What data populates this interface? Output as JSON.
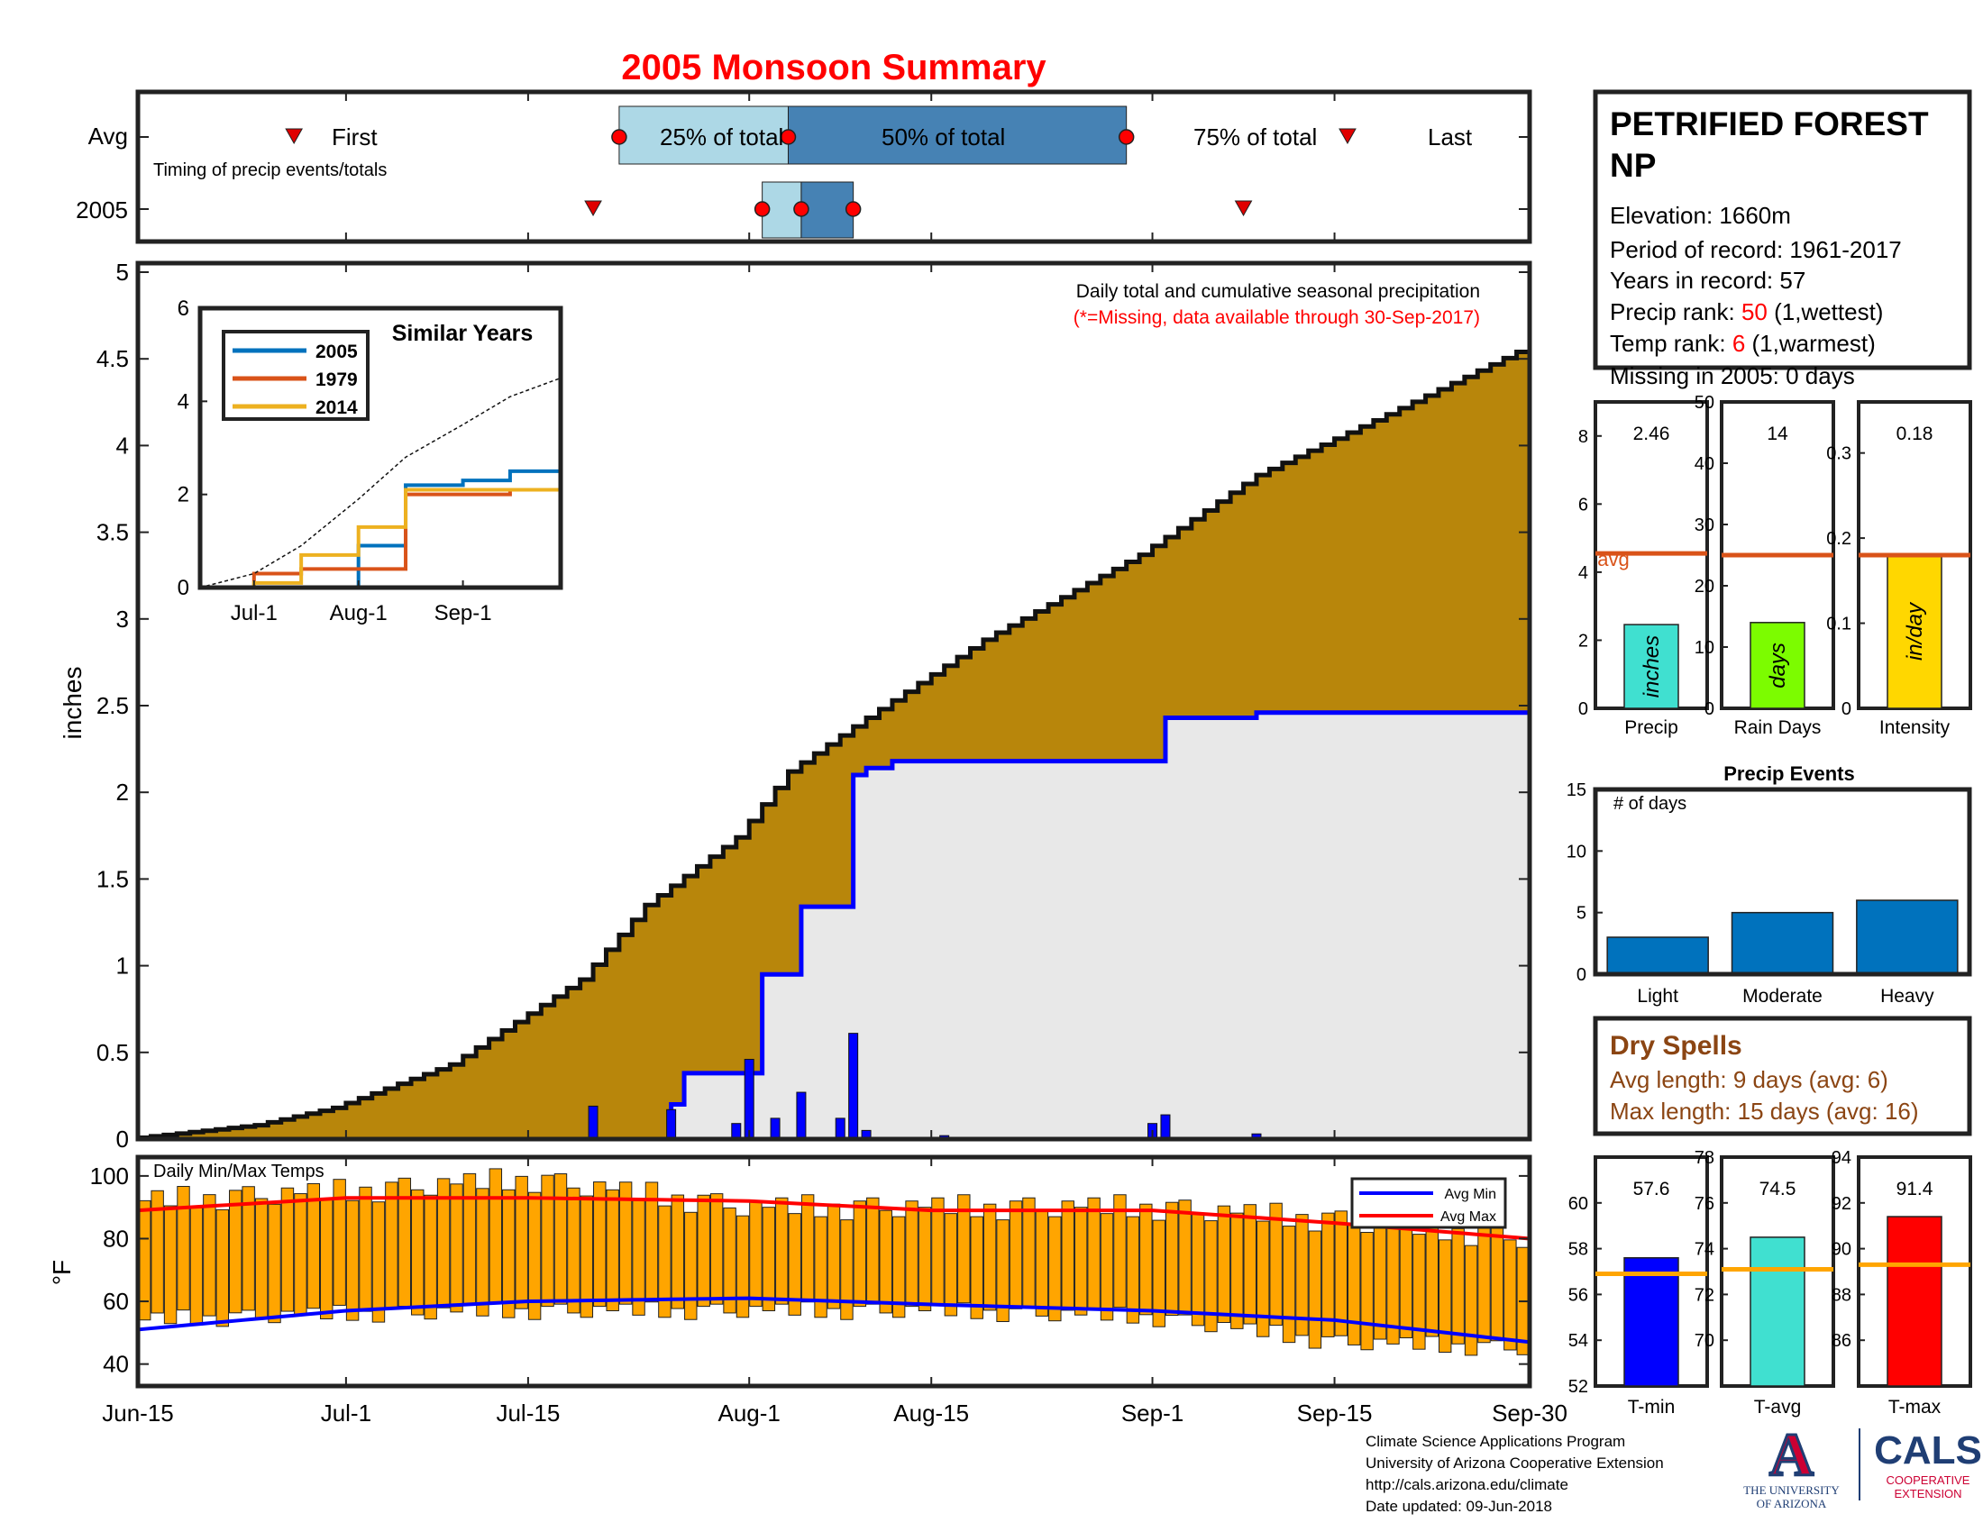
{
  "title": "2005 Monsoon Summary",
  "timing_panel": {
    "row_labels": [
      "Avg",
      "2005"
    ],
    "caption": "Timing of precip events/totals",
    "avg": {
      "first": "Jun-27",
      "q25": "Jul-22",
      "q50": "Aug-4",
      "q75": "Aug-30",
      "last": "Sep-16",
      "labels": {
        "first": "First",
        "q25": "25% of total",
        "q50": "50% of total",
        "q75": "75% of total",
        "last": "Last"
      }
    },
    "year": {
      "first": "Jul-20",
      "q25": "Aug-2",
      "q50": "Aug-5",
      "q75": "Aug-9",
      "last": "Sep-8"
    }
  },
  "station": {
    "name": "PETRIFIED FOREST NP",
    "elevation_label": "Elevation: 1660m",
    "period_label": "Period of record: 1961-2017",
    "years_label": "Years in record: 57",
    "precip_rank_prefix": "Precip rank: ",
    "precip_rank": "50",
    "precip_rank_suffix": " (1,wettest)",
    "temp_rank_prefix": "Temp rank: ",
    "temp_rank": "6",
    "temp_rank_suffix": " (1,warmest)",
    "missing_label": "Missing in 2005: 0 days"
  },
  "labels": {
    "inches": "inches",
    "deg_f": "°F",
    "daily_total_caption": "Daily total and cumulative seasonal precipitation",
    "missing_caption": "(*=Missing, data available through 30-Sep-2017)",
    "similar_years": "Similar Years",
    "temps_caption": "Daily Min/Max Temps",
    "avg_min": "Avg Min",
    "avg_max": "Avg Max",
    "precip_events": "Precip Events",
    "num_days": "# of days",
    "avg_word": "avg"
  },
  "x_ticks": [
    "Jun-15",
    "Jul-1",
    "Jul-15",
    "Aug-1",
    "Aug-15",
    "Sep-1",
    "Sep-15",
    "Sep-30"
  ],
  "dry_spells": {
    "title": "Dry Spells",
    "avg_length": "Avg length: 9 days (avg: 6)",
    "max_length": "Max length: 15 days (avg: 16)"
  },
  "footer": {
    "line1": "Climate Science Applications Program",
    "line2": "University of Arizona Cooperative Extension",
    "line3": "http://cals.arizona.edu/climate",
    "line4": "Date updated: 09-Jun-2018"
  },
  "logos": {
    "ua_letter": "A",
    "ua_line1": "THE UNIVERSITY",
    "ua_line2": "OF ARIZONA",
    "cals": "CALS",
    "cals_line1": "COOPERATIVE",
    "cals_line2": "EXTENSION"
  },
  "colors": {
    "avg_cum_fill": "#b8860b",
    "year_cum_line": "#0000ff",
    "year_fill": "#e8e8e8",
    "daily_bar": "#0000ff",
    "temp_bar": "#ffa500",
    "avg_min_line": "#0000ff",
    "avg_max_line": "#ff0000",
    "title_red": "#ff0000",
    "dry_brown": "#8b4513",
    "s2005": "#0072bd",
    "s1979": "#d95319",
    "s2014": "#edb120"
  },
  "chart_data": [
    {
      "type": "area",
      "name": "cumulative_precip",
      "xlabel": "",
      "ylabel": "inches",
      "ylim": [
        0,
        5
      ],
      "yticks": [
        0,
        0.5,
        1,
        1.5,
        2,
        2.5,
        3,
        3.5,
        4,
        4.5,
        5
      ],
      "avg_cumulative": {
        "x": [
          "Jun-15",
          "Jun-25",
          "Jul-1",
          "Jul-10",
          "Jul-20",
          "Jul-25",
          "Aug-1",
          "Aug-5",
          "Aug-10",
          "Aug-20",
          "Sep-1",
          "Sep-10",
          "Sep-20",
          "Sep-30"
        ],
        "y": [
          0,
          0.08,
          0.18,
          0.43,
          0.92,
          1.35,
          1.74,
          2.12,
          2.38,
          2.88,
          3.37,
          3.83,
          4.18,
          4.54
        ]
      },
      "year_cumulative": {
        "x": [
          "Jun-15",
          "Jul-20",
          "Jul-26",
          "Jul-27",
          "Aug-1",
          "Aug-2",
          "Aug-5",
          "Aug-8",
          "Aug-9",
          "Aug-10",
          "Aug-12",
          "Sep-1",
          "Sep-2",
          "Sep-9",
          "Sep-30"
        ],
        "y": [
          0,
          0,
          0.2,
          0.38,
          0.38,
          0.95,
          1.34,
          1.34,
          2.1,
          2.14,
          2.18,
          2.18,
          2.43,
          2.46,
          2.46
        ]
      },
      "daily": {
        "x": [
          "Jul-20",
          "Jul-26",
          "Jul-31",
          "Aug-1",
          "Aug-3",
          "Aug-5",
          "Aug-8",
          "Aug-9",
          "Aug-10",
          "Aug-16",
          "Sep-1",
          "Sep-2",
          "Sep-9"
        ],
        "y": [
          0.19,
          0.17,
          0.09,
          0.46,
          0.12,
          0.27,
          0.12,
          0.61,
          0.05,
          0.02,
          0.09,
          0.14,
          0.03
        ]
      }
    },
    {
      "type": "line",
      "name": "similar_years",
      "title": "Similar Years",
      "ylim": [
        0,
        6
      ],
      "yticks": [
        0,
        2,
        4,
        6
      ],
      "xticks": [
        "Jul-1",
        "Aug-1",
        "Sep-1"
      ],
      "x": [
        "Jun-15",
        "Jul-1",
        "Jul-15",
        "Aug-1",
        "Aug-15",
        "Sep-1",
        "Sep-15",
        "Sep-30"
      ],
      "series": [
        {
          "name": "2005",
          "values": [
            0,
            0,
            0,
            0.9,
            2.2,
            2.3,
            2.5,
            2.5
          ]
        },
        {
          "name": "1979",
          "values": [
            0,
            0.3,
            0.4,
            0.4,
            2.0,
            2.0,
            2.1,
            2.1
          ]
        },
        {
          "name": "2014",
          "values": [
            0,
            0.1,
            0.7,
            1.3,
            2.1,
            2.1,
            2.1,
            3.7
          ]
        },
        {
          "name": "avg",
          "values": [
            0,
            0.3,
            0.9,
            1.9,
            2.8,
            3.5,
            4.1,
            4.5
          ]
        }
      ]
    },
    {
      "type": "bar",
      "name": "daily_temps",
      "ylabel": "°F",
      "ylim": [
        33,
        106
      ],
      "yticks": [
        40,
        60,
        80,
        100
      ],
      "tmin_x": [
        "Jun-15",
        "Jul-1",
        "Jul-15",
        "Aug-1",
        "Aug-15",
        "Sep-1",
        "Sep-15",
        "Sep-30"
      ],
      "tmin": [
        54,
        56,
        57,
        57,
        57,
        55,
        47,
        45
      ],
      "tmax": [
        92,
        95,
        99,
        90,
        90,
        90,
        86,
        80
      ],
      "avg_min": [
        51,
        57,
        60,
        61,
        59,
        57,
        54,
        47
      ],
      "avg_max": [
        89,
        93,
        93,
        92,
        89,
        89,
        85,
        80
      ]
    },
    {
      "type": "bar",
      "name": "precip_summary",
      "categories": [
        "Precip",
        "Rain Days",
        "Intensity"
      ],
      "values": [
        2.46,
        14,
        0.18
      ],
      "value_labels": [
        "2.46",
        "14",
        "0.18"
      ],
      "averages": [
        4.55,
        25,
        0.18
      ],
      "units": [
        "inches",
        "days",
        "in/day"
      ],
      "ylims": [
        [
          0,
          9
        ],
        [
          0,
          50
        ],
        [
          0,
          0.36
        ]
      ],
      "yticks": [
        [
          0,
          2,
          4,
          6,
          8
        ],
        [
          0,
          10,
          20,
          30,
          40,
          50
        ],
        [
          0,
          0.1,
          0.2,
          0.3
        ]
      ],
      "colors": [
        "#40e0d0",
        "#7cfc00",
        "#ffd700"
      ]
    },
    {
      "type": "bar",
      "name": "precip_events",
      "title": "Precip Events",
      "ylabel": "# of days",
      "categories": [
        "Light",
        "Moderate",
        "Heavy"
      ],
      "values": [
        3,
        5,
        6
      ],
      "ylim": [
        0,
        15
      ],
      "yticks": [
        0,
        5,
        10,
        15
      ]
    },
    {
      "type": "bar",
      "name": "temp_summary",
      "categories": [
        "T-min",
        "T-avg",
        "T-max"
      ],
      "values": [
        57.6,
        74.5,
        91.4
      ],
      "value_labels": [
        "57.6",
        "74.5",
        "91.4"
      ],
      "averages": [
        56.9,
        73.1,
        89.3
      ],
      "ylims": [
        [
          52,
          62
        ],
        [
          68,
          78
        ],
        [
          84,
          94
        ]
      ],
      "yticks": [
        [
          52,
          54,
          56,
          58,
          60
        ],
        [
          70,
          72,
          74,
          76,
          78
        ],
        [
          86,
          88,
          90,
          92,
          94
        ]
      ],
      "colors": [
        "#0000ff",
        "#40e0d0",
        "#ff0000"
      ]
    }
  ]
}
